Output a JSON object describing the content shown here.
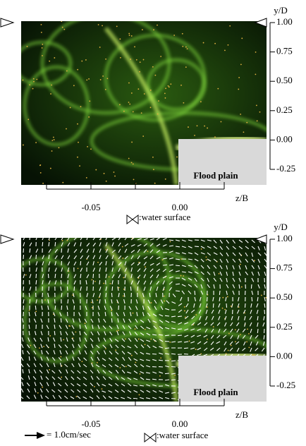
{
  "panels": [
    {
      "y_label": "y/D",
      "ylim": [
        -0.25,
        1
      ],
      "yticks": [
        {
          "value": 1,
          "label": "1.00"
        },
        0.75,
        {
          "value": 0.5,
          "label": "0.50"
        },
        0.25,
        {
          "value": 0,
          "label": "0.00"
        },
        -0.25
      ],
      "x_label": "z/B",
      "xlim": [
        -0.075,
        0.025
      ],
      "xticks": [
        {
          "value": -0.05,
          "label": "-0.05"
        },
        {
          "value": 0,
          "label": "0.00"
        }
      ],
      "xminor": [
        -0.025
      ],
      "flood_plain": "Flood plain",
      "water_surface": ":water surface"
    },
    {
      "y_label": "y/D",
      "ylim": [
        -0.25,
        1
      ],
      "yticks": [
        {
          "value": 1,
          "label": "1.00"
        },
        0.75,
        {
          "value": 0.5,
          "label": "0.50"
        },
        0.25,
        {
          "value": 0,
          "label": "0.00"
        },
        -0.25
      ],
      "x_label": "z/B",
      "xlim": [
        -0.075,
        0.025
      ],
      "xticks": [
        {
          "value": -0.05,
          "label": "-0.05"
        },
        {
          "value": 0,
          "label": "0.00"
        }
      ],
      "xminor": [
        -0.025
      ],
      "flood_plain": "Flood plain",
      "water_surface": ":water surface",
      "scale": "= 1.0cm/sec"
    }
  ]
}
